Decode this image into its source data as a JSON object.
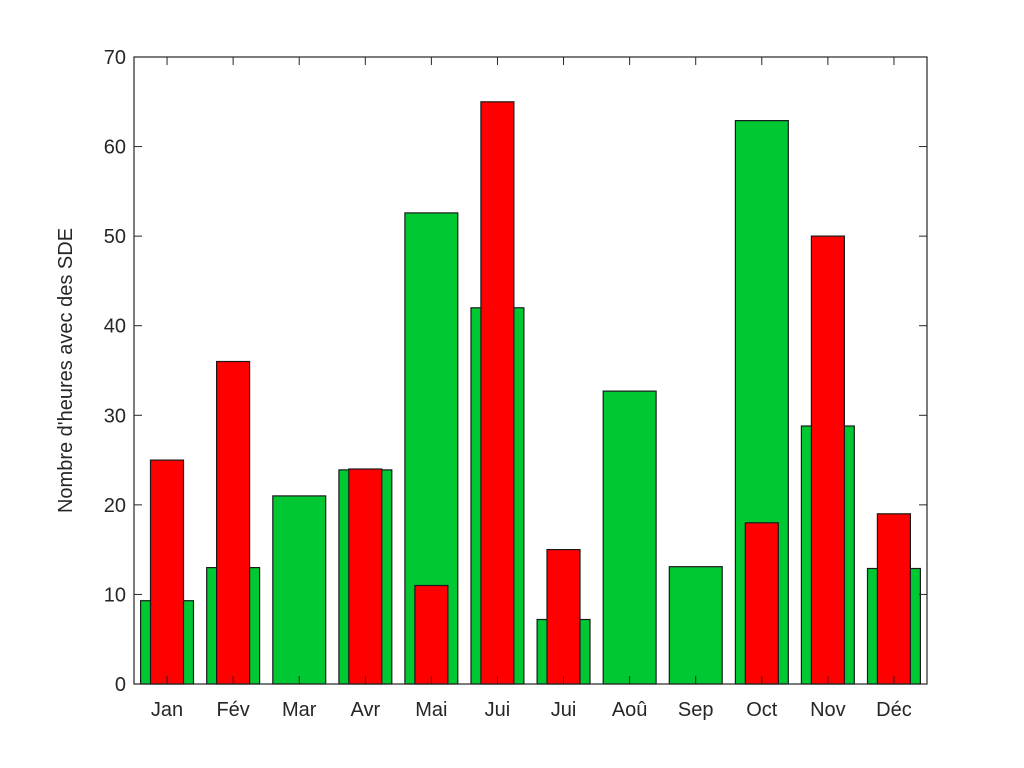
{
  "chart_data": {
    "type": "bar",
    "title": "",
    "xlabel": "",
    "ylabel": "Nombre d'heures avec des SDE",
    "ylim": [
      0,
      70
    ],
    "yticks": [
      0,
      10,
      20,
      30,
      40,
      50,
      60,
      70
    ],
    "grid": false,
    "legend": "none",
    "categories": [
      "Jan",
      "Fév",
      "Mar",
      "Avr",
      "Mai",
      "Jui",
      "Jui",
      "Aoû",
      "Sep",
      "Oct",
      "Nov",
      "Déc"
    ],
    "series": [
      {
        "color": "#00C832",
        "values": [
          9.3,
          13,
          21,
          23.9,
          52.6,
          42,
          7.2,
          32.7,
          13.1,
          62.9,
          28.8,
          12.9
        ]
      },
      {
        "color": "#FF0000",
        "values": [
          25,
          36,
          0,
          24,
          11,
          65,
          15,
          0,
          0,
          18,
          50,
          19
        ]
      }
    ]
  }
}
